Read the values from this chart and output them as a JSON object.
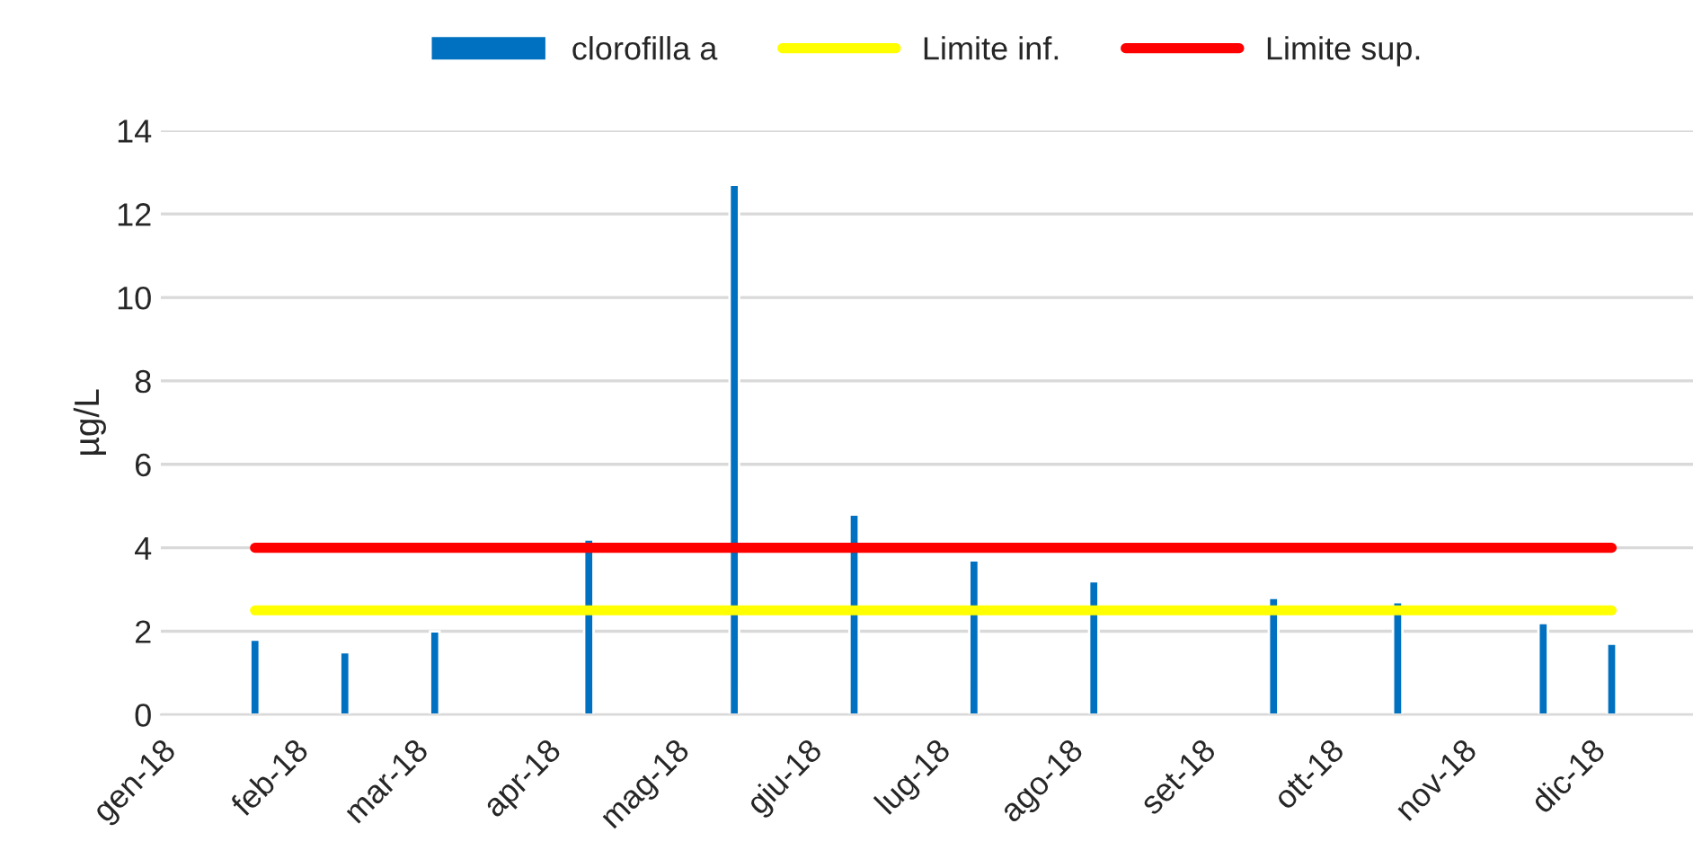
{
  "chart_data": {
    "type": "bar",
    "ylabel": "µg/L",
    "x": [
      "2018-01-23",
      "2018-02-13",
      "2018-03-06",
      "2018-04-11",
      "2018-05-15",
      "2018-06-12",
      "2018-07-10",
      "2018-08-07",
      "2018-09-18",
      "2018-10-17",
      "2018-11-20",
      "2018-12-06"
    ],
    "series": [
      {
        "name": "clorofilla a",
        "color": "#0070c0",
        "values": [
          1.8,
          1.5,
          2.0,
          4.2,
          12.7,
          4.8,
          3.7,
          3.2,
          2.8,
          2.7,
          2.2,
          1.7
        ]
      },
      {
        "name": "Limite inf.",
        "type": "line",
        "color": "#ffff00",
        "x": [
          "2018-01-23",
          "2018-12-06"
        ],
        "values": [
          2.5,
          2.5
        ]
      },
      {
        "name": "Limite sup.",
        "type": "line",
        "color": "#ff0000",
        "x": [
          "2018-01-23",
          "2018-12-06"
        ],
        "values": [
          4,
          4
        ]
      }
    ],
    "xlim": [
      "2018-01-01",
      "2018-12-25"
    ],
    "xticks": [
      {
        "value": "2018-01-01",
        "label": "gen-18"
      },
      {
        "value": "2018-02-01",
        "label": "feb-18"
      },
      {
        "value": "2018-03-01",
        "label": "mar-18"
      },
      {
        "value": "2018-04-01",
        "label": "apr-18"
      },
      {
        "value": "2018-05-01",
        "label": "mag-18"
      },
      {
        "value": "2018-06-01",
        "label": "giu-18"
      },
      {
        "value": "2018-07-01",
        "label": "lug-18"
      },
      {
        "value": "2018-08-01",
        "label": "ago-18"
      },
      {
        "value": "2018-09-01",
        "label": "set-18"
      },
      {
        "value": "2018-10-01",
        "label": "ott-18"
      },
      {
        "value": "2018-11-01",
        "label": "nov-18"
      },
      {
        "value": "2018-12-01",
        "label": "dic-18"
      }
    ],
    "ylim": [
      0,
      14
    ],
    "yticks": [
      0,
      2,
      4,
      6,
      8,
      10,
      12,
      14
    ],
    "grid": "y",
    "legend": "top"
  }
}
